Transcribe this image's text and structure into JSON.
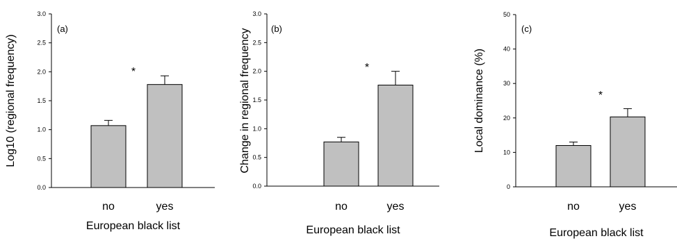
{
  "chart_data": [
    {
      "type": "bar",
      "panel_label": "(a)",
      "xlabel": "European black list",
      "ylabel": "Log10 (regional frequency)",
      "categories": [
        "no",
        "yes"
      ],
      "values": [
        1.07,
        1.78
      ],
      "errors": [
        0.09,
        0.15
      ],
      "ylim": [
        0,
        3.0
      ],
      "yticks": [
        "0.0",
        "0.5",
        "1.0",
        "1.5",
        "2.0",
        "2.5",
        "3.0"
      ],
      "significance": "*",
      "grid": false,
      "bar_color": "#c0c0c0"
    },
    {
      "type": "bar",
      "panel_label": "(b)",
      "xlabel": "European black list",
      "ylabel": "Change in regional frequency",
      "categories": [
        "no",
        "yes"
      ],
      "values": [
        0.77,
        1.76
      ],
      "errors": [
        0.08,
        0.24
      ],
      "ylim": [
        0,
        3.0
      ],
      "yticks": [
        "0.0",
        "0.5",
        "1.0",
        "1.5",
        "2.0",
        "2.5",
        "3.0"
      ],
      "significance": "*",
      "grid": false,
      "bar_color": "#c0c0c0"
    },
    {
      "type": "bar",
      "panel_label": "(c)",
      "xlabel": "European black list",
      "ylabel": "Local dominance (%)",
      "categories": [
        "no",
        "yes"
      ],
      "values": [
        12.0,
        20.3
      ],
      "errors": [
        1.0,
        2.4
      ],
      "ylim": [
        0,
        50
      ],
      "yticks": [
        "0",
        "10",
        "20",
        "30",
        "40",
        "50"
      ],
      "significance": "*",
      "grid": false,
      "bar_color": "#c0c0c0"
    }
  ]
}
